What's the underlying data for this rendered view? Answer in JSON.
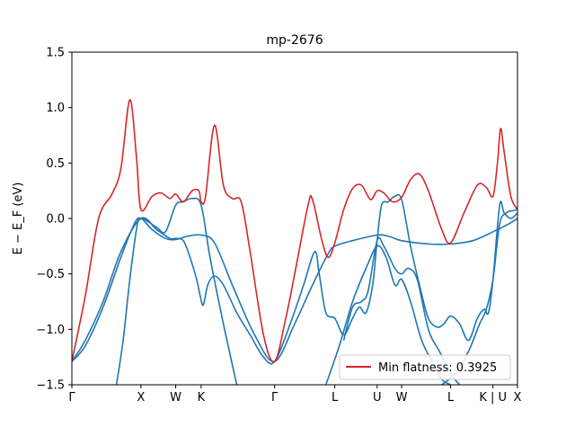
{
  "chart_data": {
    "type": "line",
    "title": "mp-2676",
    "xlabel": "",
    "ylabel": "E − E_F (eV)",
    "ylim": [
      -1.5,
      1.5
    ],
    "yticks": [
      -1.5,
      -1.0,
      -0.5,
      0.0,
      0.5,
      1.0,
      1.5
    ],
    "ytick_labels": [
      "−1.5",
      "−1.0",
      "−0.5",
      "0.0",
      "0.5",
      "1.0",
      "1.5"
    ],
    "xlim": [
      0,
      10
    ],
    "kpoints": [
      {
        "label": "Γ",
        "x": 0.0
      },
      {
        "label": "X",
        "x": 1.55
      },
      {
        "label": "W",
        "x": 2.33
      },
      {
        "label": "K",
        "x": 2.9
      },
      {
        "label": "Γ",
        "x": 4.55
      },
      {
        "label": "L",
        "x": 5.9
      },
      {
        "label": "U",
        "x": 6.85
      },
      {
        "label": "W",
        "x": 7.4
      },
      {
        "label": "L",
        "x": 8.5
      },
      {
        "label": "K | U",
        "x": 9.45
      },
      {
        "label": "X",
        "x": 10.0
      }
    ],
    "legend": {
      "label": "Min flatness: 0.3925",
      "color": "#d62728",
      "position": "lower-right"
    },
    "grid": false,
    "series": [
      {
        "color": "#d62728",
        "points": [
          [
            0,
            -1.29
          ],
          [
            0.3,
            -0.7
          ],
          [
            0.6,
            0.0
          ],
          [
            0.9,
            0.22
          ],
          [
            1.1,
            0.45
          ],
          [
            1.3,
            1.07
          ],
          [
            1.45,
            0.55
          ],
          [
            1.55,
            0.08
          ],
          [
            1.8,
            0.2
          ],
          [
            2.0,
            0.23
          ],
          [
            2.2,
            0.18
          ],
          [
            2.33,
            0.22
          ],
          [
            2.5,
            0.15
          ],
          [
            2.7,
            0.25
          ],
          [
            2.85,
            0.25
          ],
          [
            2.9,
            0.15
          ],
          [
            3.0,
            0.2
          ],
          [
            3.2,
            0.84
          ],
          [
            3.4,
            0.3
          ],
          [
            3.6,
            0.18
          ],
          [
            3.8,
            0.15
          ],
          [
            4.0,
            -0.3
          ],
          [
            4.3,
            -1.05
          ],
          [
            4.55,
            -1.29
          ],
          [
            4.8,
            -0.9
          ],
          [
            5.0,
            -0.5
          ],
          [
            5.3,
            0.12
          ],
          [
            5.4,
            0.17
          ],
          [
            5.6,
            -0.18
          ],
          [
            5.75,
            -0.35
          ],
          [
            5.9,
            -0.22
          ],
          [
            6.1,
            0.08
          ],
          [
            6.3,
            0.27
          ],
          [
            6.5,
            0.3
          ],
          [
            6.7,
            0.17
          ],
          [
            6.85,
            0.25
          ],
          [
            7.0,
            0.23
          ],
          [
            7.2,
            0.15
          ],
          [
            7.4,
            0.19
          ],
          [
            7.6,
            0.35
          ],
          [
            7.8,
            0.4
          ],
          [
            8.0,
            0.25
          ],
          [
            8.3,
            -0.1
          ],
          [
            8.5,
            -0.22
          ],
          [
            8.8,
            0.05
          ],
          [
            9.1,
            0.3
          ],
          [
            9.3,
            0.28
          ],
          [
            9.45,
            0.2
          ],
          [
            9.55,
            0.5
          ],
          [
            9.62,
            0.81
          ],
          [
            9.7,
            0.6
          ],
          [
            9.85,
            0.2
          ],
          [
            10.0,
            0.08
          ]
        ]
      },
      {
        "color": "#1f77b4",
        "points": [
          [
            0,
            -1.29
          ],
          [
            0.3,
            -1.15
          ],
          [
            0.7,
            -0.8
          ],
          [
            1.1,
            -0.35
          ],
          [
            1.4,
            -0.05
          ],
          [
            1.55,
            0.0
          ],
          [
            1.8,
            -0.1
          ],
          [
            2.1,
            -0.18
          ],
          [
            2.33,
            -0.19
          ],
          [
            2.6,
            -0.16
          ],
          [
            2.9,
            -0.15
          ],
          [
            3.2,
            -0.22
          ],
          [
            3.6,
            -0.6
          ],
          [
            4.1,
            -1.05
          ],
          [
            4.55,
            -1.29
          ],
          [
            5.0,
            -0.95
          ],
          [
            5.4,
            -0.6
          ],
          [
            5.75,
            -0.32
          ],
          [
            5.9,
            -0.25
          ],
          [
            6.3,
            -0.2
          ],
          [
            6.85,
            -0.15
          ],
          [
            7.1,
            -0.16
          ],
          [
            7.4,
            -0.2
          ],
          [
            8.0,
            -0.23
          ],
          [
            8.5,
            -0.23
          ],
          [
            9.0,
            -0.2
          ],
          [
            9.45,
            -0.12
          ],
          [
            9.8,
            -0.05
          ],
          [
            10.0,
            0.0
          ]
        ]
      },
      {
        "color": "#1f77b4",
        "points": [
          [
            0,
            -1.29
          ],
          [
            0.3,
            -1.1
          ],
          [
            0.7,
            -0.75
          ],
          [
            1.1,
            -0.3
          ],
          [
            1.55,
            0.0
          ],
          [
            1.9,
            -0.1
          ],
          [
            2.2,
            -0.18
          ],
          [
            2.33,
            -0.18
          ],
          [
            2.5,
            -0.2
          ],
          [
            2.65,
            -0.35
          ],
          [
            2.8,
            -0.55
          ],
          [
            2.88,
            -0.7
          ],
          [
            2.95,
            -0.78
          ],
          [
            3.05,
            -0.6
          ],
          [
            3.2,
            -0.52
          ],
          [
            3.4,
            -0.6
          ],
          [
            3.7,
            -0.85
          ],
          [
            4.0,
            -1.05
          ],
          [
            4.3,
            -1.25
          ],
          [
            4.55,
            -1.29
          ],
          [
            4.9,
            -0.95
          ],
          [
            5.2,
            -0.6
          ],
          [
            5.45,
            -0.3
          ],
          [
            5.55,
            -0.5
          ],
          [
            5.7,
            -0.85
          ],
          [
            5.9,
            -0.9
          ],
          [
            6.1,
            -1.05
          ],
          [
            6.3,
            -0.9
          ],
          [
            6.45,
            -0.8
          ],
          [
            6.6,
            -0.85
          ],
          [
            6.75,
            -0.6
          ],
          [
            6.85,
            -0.2
          ],
          [
            6.95,
            0.12
          ],
          [
            7.1,
            0.15
          ],
          [
            7.25,
            0.2
          ],
          [
            7.4,
            0.17
          ],
          [
            7.6,
            -0.25
          ],
          [
            7.8,
            -0.6
          ],
          [
            8.0,
            -0.9
          ],
          [
            8.2,
            -0.98
          ],
          [
            8.35,
            -0.95
          ],
          [
            8.5,
            -0.88
          ],
          [
            8.7,
            -0.95
          ],
          [
            8.9,
            -1.1
          ],
          [
            9.1,
            -0.9
          ],
          [
            9.25,
            -0.82
          ],
          [
            9.35,
            -0.85
          ],
          [
            9.45,
            -0.55
          ],
          [
            9.6,
            0.12
          ],
          [
            9.7,
            0.05
          ],
          [
            9.85,
            0.0
          ],
          [
            10.0,
            0.05
          ]
        ]
      },
      {
        "color": "#1f77b4",
        "points": [
          [
            1.0,
            -1.5
          ],
          [
            1.15,
            -1.1
          ],
          [
            1.3,
            -0.55
          ],
          [
            1.45,
            -0.1
          ],
          [
            1.55,
            0.0
          ],
          [
            1.9,
            -0.08
          ],
          [
            2.1,
            -0.12
          ],
          [
            2.33,
            0.12
          ],
          [
            2.5,
            0.15
          ],
          [
            2.7,
            0.18
          ],
          [
            2.9,
            0.12
          ],
          [
            3.1,
            -0.35
          ],
          [
            3.4,
            -0.95
          ],
          [
            3.7,
            -1.5
          ]
        ]
      },
      {
        "color": "#1f77b4",
        "points": [
          [
            5.7,
            -1.5
          ],
          [
            6.0,
            -1.15
          ],
          [
            6.3,
            -0.75
          ],
          [
            6.6,
            -0.45
          ],
          [
            6.85,
            -0.25
          ],
          [
            7.05,
            -0.35
          ],
          [
            7.25,
            -0.6
          ],
          [
            7.4,
            -0.55
          ],
          [
            7.6,
            -0.75
          ],
          [
            7.85,
            -1.1
          ],
          [
            8.1,
            -1.3
          ],
          [
            8.3,
            -1.45
          ],
          [
            8.5,
            -1.5
          ]
        ]
      },
      {
        "color": "#1f77b4",
        "points": [
          [
            8.3,
            -1.5
          ],
          [
            8.6,
            -1.4
          ],
          [
            8.9,
            -1.2
          ],
          [
            9.15,
            -0.95
          ],
          [
            9.3,
            -0.82
          ],
          [
            9.45,
            -0.55
          ],
          [
            9.6,
            -0.05
          ],
          [
            9.75,
            0.05
          ],
          [
            9.9,
            0.07
          ],
          [
            10.0,
            0.08
          ]
        ]
      },
      {
        "color": "#1f77b4",
        "points": [
          [
            6.1,
            -1.1
          ],
          [
            6.3,
            -0.8
          ],
          [
            6.5,
            -0.75
          ],
          [
            6.65,
            -0.65
          ],
          [
            6.85,
            -0.2
          ],
          [
            7.0,
            -0.25
          ],
          [
            7.25,
            -0.45
          ],
          [
            7.4,
            -0.5
          ],
          [
            7.55,
            -0.45
          ],
          [
            7.75,
            -0.55
          ],
          [
            8.0,
            -1.0
          ],
          [
            8.25,
            -1.2
          ],
          [
            8.5,
            -1.4
          ],
          [
            8.7,
            -1.5
          ]
        ]
      }
    ]
  }
}
